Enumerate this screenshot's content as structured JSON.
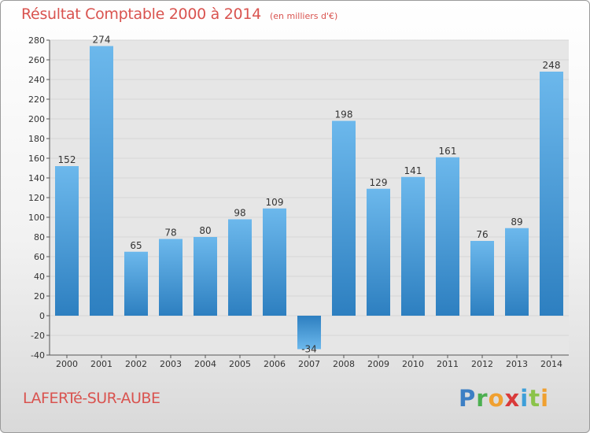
{
  "title": "Résultat Comptable 2000 à 2014",
  "subtitle": "(en milliers d'€)",
  "commune": "LAFERTé-SUR-AUBE",
  "logo": {
    "text": "Proxiti",
    "letters": [
      {
        "ch": "P",
        "color": "#3d7fc4"
      },
      {
        "ch": "r",
        "color": "#4caf50"
      },
      {
        "ch": "o",
        "color": "#f0a030"
      },
      {
        "ch": "x",
        "color": "#d93a3a"
      },
      {
        "ch": "i",
        "color": "#3d9fd9"
      },
      {
        "ch": "t",
        "color": "#8bc34a"
      },
      {
        "ch": "i",
        "color": "#f0a030"
      }
    ]
  },
  "chart_data": {
    "type": "bar",
    "title": "Résultat Comptable 2000 à 2014",
    "xlabel": "",
    "ylabel": "",
    "categories": [
      "2000",
      "2001",
      "2002",
      "2003",
      "2004",
      "2005",
      "2006",
      "2007",
      "2008",
      "2009",
      "2010",
      "2011",
      "2012",
      "2013",
      "2014"
    ],
    "values": [
      152,
      274,
      65,
      78,
      80,
      98,
      109,
      -34,
      198,
      129,
      141,
      161,
      76,
      89,
      248
    ],
    "ylim": [
      -40,
      280
    ],
    "yticks": [
      -40,
      -20,
      0,
      20,
      40,
      60,
      80,
      100,
      120,
      140,
      160,
      180,
      200,
      220,
      240,
      260,
      280
    ],
    "grid": true,
    "colors": {
      "bar_light": "#6cb8ec",
      "bar_dark": "#2d7fc0",
      "grid": "#d6d6d6",
      "plot_bg": "#e6e6e6"
    }
  }
}
